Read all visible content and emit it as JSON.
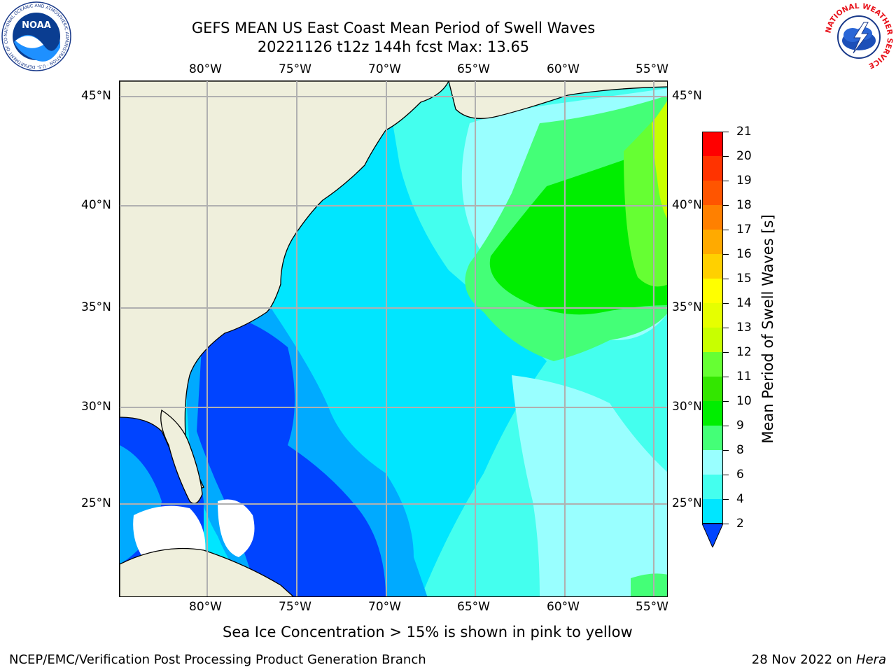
{
  "title": {
    "line1": "GEFS MEAN US East Coast Mean Period of Swell Waves",
    "line2": "20221126 t12z 144h fcst   Max: 13.65"
  },
  "axes": {
    "lon_labels": [
      "80°W",
      "75°W",
      "70°W",
      "65°W",
      "60°W",
      "55°W"
    ],
    "lat_labels": [
      "45°N",
      "40°N",
      "35°N",
      "30°N",
      "25°N"
    ]
  },
  "colorbar": {
    "label": "Mean Period of Swell Waves [s]",
    "ticks": [
      "21",
      "20",
      "19",
      "18",
      "17",
      "16",
      "15",
      "14",
      "13",
      "12",
      "11",
      "10",
      "9",
      "8",
      "6",
      "4",
      "2"
    ],
    "colors": [
      "#ff0000",
      "#ff3300",
      "#ff5500",
      "#ff8000",
      "#ffaa00",
      "#ffd000",
      "#ffff00",
      "#e6ff00",
      "#c8ff00",
      "#66ff33",
      "#33e600",
      "#00ee00",
      "#44ff77",
      "#99ffff",
      "#44ffee",
      "#00e6ff",
      "#00aaff",
      "#0044ff"
    ]
  },
  "note": "Sea Ice Concentration > 15% is shown in pink to yellow",
  "footer": {
    "left": "NCEP/EMC/Verification Post Processing Product Generation Branch",
    "date": "28 Nov 2022 on ",
    "host": "Hera"
  },
  "logos": {
    "noaa_text": "NOAA",
    "noaa_ring": "NATIONAL OCEANIC AND ATMOSPHERIC ADMINISTRATION · U.S. DEPARTMENT OF COMMERCE",
    "nws_ring": "NATIONAL WEATHER SERVICE"
  }
}
